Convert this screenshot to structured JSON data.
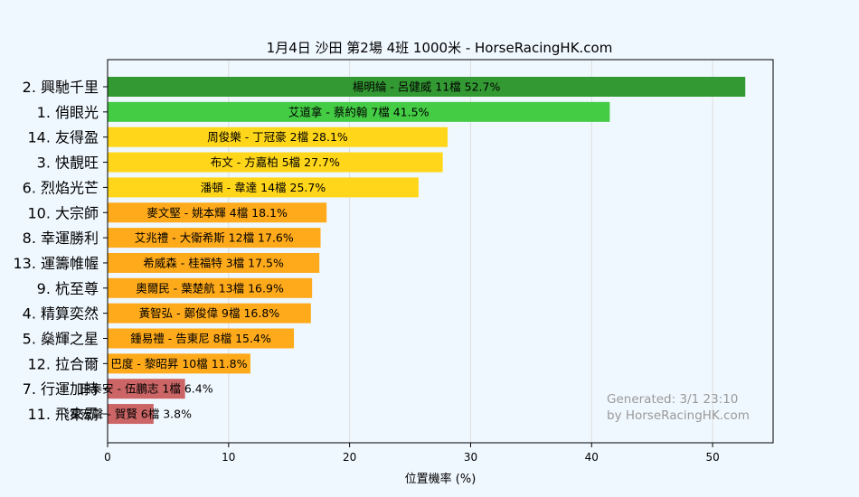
{
  "chart_data": {
    "type": "bar",
    "orientation": "horizontal",
    "title": "1月4日  沙田  第2場  4班  1000米 - HorseRacingHK.com",
    "xlabel": "位置機率 (%)",
    "xlim": [
      0,
      55
    ],
    "xticks": [
      0,
      10,
      20,
      30,
      40,
      50
    ],
    "grid": true,
    "categories": [
      "2. 興馳千里",
      "1. 俏眼光",
      "14. 友得盈",
      "3. 快靚旺",
      "6. 烈焰光芒",
      "10. 大宗師",
      "8. 幸運勝利",
      "13. 運籌帷幄",
      "9. 杭至尊",
      "4. 精算奕然",
      "5. 燊輝之星",
      "12. 拉合爾",
      "7. 行運加持",
      "11. 飛來霸"
    ],
    "values": [
      52.7,
      41.5,
      28.1,
      27.7,
      25.7,
      18.1,
      17.6,
      17.5,
      16.9,
      16.8,
      15.4,
      11.8,
      6.4,
      3.8
    ],
    "bar_labels": [
      "楊明綸 - 呂健威 11檔  52.7%",
      "艾道拿 - 蔡約翰 7檔  41.5%",
      "周俊樂 - 丁冠豪 2檔  28.1%",
      "布文 - 方嘉柏 5檔  27.7%",
      "潘頓 - 韋達 14檔  25.7%",
      "麥文堅 - 姚本輝 4檔  18.1%",
      "艾兆禮 - 大衛希斯 12檔  17.6%",
      "希威森 - 桂福特 3檔  17.5%",
      "奧爾民 - 葉楚航 13檔  16.9%",
      "黃智弘 - 鄭俊偉 9檔  16.8%",
      "鍾易禮 - 告東尼 8檔  15.4%",
      "巴度 - 黎昭昇 10檔  11.8%",
      "田泰安 - 伍鵬志 1檔  6.4%",
      "霍宏聲 - 賀賢 6檔  3.8%"
    ],
    "colors": [
      "#339933",
      "#44cc44",
      "#ffd61a",
      "#ffd61a",
      "#ffd61a",
      "#ffaa1a",
      "#ffaa1a",
      "#ffaa1a",
      "#ffaa1a",
      "#ffaa1a",
      "#ffaa1a",
      "#ffaa1a",
      "#cc6666",
      "#cc6666"
    ],
    "watermark": [
      "Generated: 3/1 23:10",
      "by HorseRacingHK.com"
    ]
  }
}
